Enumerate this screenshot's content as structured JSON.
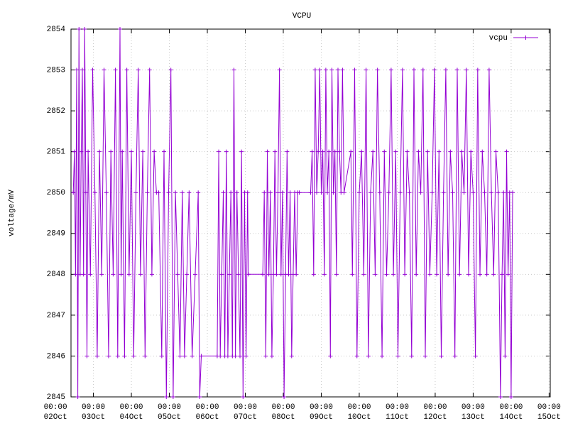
{
  "chart_data": {
    "type": "line",
    "title": "VCPU",
    "ylabel": "voltage/mV",
    "xlim": [
      2.41,
      15.03
    ],
    "ylim": [
      2845,
      2854
    ],
    "xticks": [
      {
        "value": 2,
        "label": "00:00\n02Oct"
      },
      {
        "value": 3,
        "label": "00:00\n03Oct"
      },
      {
        "value": 4,
        "label": "00:00\n04Oct"
      },
      {
        "value": 5,
        "label": "00:00\n05Oct"
      },
      {
        "value": 6,
        "label": "00:00\n06Oct"
      },
      {
        "value": 7,
        "label": "00:00\n07Oct"
      },
      {
        "value": 8,
        "label": "00:00\n08Oct"
      },
      {
        "value": 9,
        "label": "00:00\n09Oct"
      },
      {
        "value": 10,
        "label": "00:00\n10Oct"
      },
      {
        "value": 11,
        "label": "00:00\n11Oct"
      },
      {
        "value": 12,
        "label": "00:00\n12Oct"
      },
      {
        "value": 13,
        "label": "00:00\n13Oct"
      },
      {
        "value": 14,
        "label": "00:00\n14Oct"
      },
      {
        "value": 15,
        "label": "00:00\n15Oct"
      }
    ],
    "yticks": [
      2845,
      2846,
      2847,
      2848,
      2849,
      2850,
      2851,
      2852,
      2853,
      2854
    ],
    "grid": true,
    "legend": "top right",
    "series": [
      {
        "name": "vcpu",
        "color": "#9400d3",
        "x": [
          2.47,
          2.5,
          2.53,
          2.56,
          2.59,
          2.62,
          2.65,
          2.68,
          2.71,
          2.74,
          2.77,
          2.8,
          2.83,
          2.86,
          2.92,
          2.98,
          3.04,
          3.1,
          3.16,
          3.22,
          3.28,
          3.34,
          3.4,
          3.46,
          3.52,
          3.58,
          3.64,
          3.7,
          3.73,
          3.76,
          3.82,
          3.88,
          3.94,
          4.0,
          4.06,
          4.12,
          4.18,
          4.24,
          4.3,
          4.36,
          4.42,
          4.48,
          4.54,
          4.6,
          4.66,
          4.72,
          4.8,
          4.86,
          4.92,
          4.98,
          5.04,
          5.1,
          5.16,
          5.22,
          5.28,
          5.34,
          5.4,
          5.46,
          5.52,
          5.6,
          5.68,
          5.76,
          5.8,
          5.84,
          6.26,
          6.3,
          6.34,
          6.38,
          6.42,
          6.46,
          6.5,
          6.54,
          6.58,
          6.62,
          6.66,
          6.7,
          6.74,
          6.78,
          6.82,
          6.86,
          6.9,
          6.94,
          6.98,
          7.02,
          7.06,
          7.08,
          7.46,
          7.5,
          7.54,
          7.58,
          7.62,
          7.66,
          7.7,
          7.74,
          7.78,
          7.82,
          7.86,
          7.9,
          7.94,
          7.98,
          8.02,
          8.06,
          8.1,
          8.14,
          8.18,
          8.22,
          8.26,
          8.3,
          8.34,
          8.38,
          8.42,
          8.72,
          8.76,
          8.8,
          8.84,
          8.88,
          8.92,
          8.96,
          9.0,
          9.04,
          9.08,
          9.12,
          9.16,
          9.2,
          9.24,
          9.28,
          9.32,
          9.36,
          9.4,
          9.44,
          9.48,
          9.52,
          9.56,
          9.6,
          9.78,
          9.82,
          9.88,
          9.94,
          10.0,
          10.06,
          10.12,
          10.18,
          10.24,
          10.3,
          10.36,
          10.42,
          10.48,
          10.54,
          10.6,
          10.66,
          10.72,
          10.78,
          10.84,
          10.9,
          10.96,
          11.02,
          11.08,
          11.14,
          11.2,
          11.26,
          11.32,
          11.38,
          11.44,
          11.5,
          11.56,
          11.62,
          11.68,
          11.74,
          11.8,
          11.86,
          11.92,
          11.98,
          12.04,
          12.1,
          12.16,
          12.22,
          12.28,
          12.34,
          12.4,
          12.46,
          12.52,
          12.58,
          12.64,
          12.7,
          12.76,
          12.82,
          12.88,
          12.94,
          13.0,
          13.06,
          13.12,
          13.18,
          13.24,
          13.3,
          13.36,
          13.42,
          13.48,
          13.54,
          13.6,
          13.66,
          13.72,
          13.76,
          13.8,
          13.84,
          13.88,
          13.92,
          13.96,
          14.0,
          14.04
        ],
        "values": [
          2850,
          2851,
          2848,
          2853,
          2845,
          2854,
          2848,
          2851,
          2853,
          2848,
          2854,
          2850,
          2846,
          2851,
          2848,
          2853,
          2850,
          2846,
          2851,
          2848,
          2853,
          2850,
          2846,
          2851,
          2848,
          2853,
          2846,
          2854,
          2848,
          2851,
          2846,
          2853,
          2848,
          2851,
          2846,
          2850,
          2853,
          2848,
          2851,
          2846,
          2850,
          2853,
          2848,
          2851,
          2850,
          2850,
          2846,
          2851,
          2845,
          2850,
          2853,
          2845,
          2850,
          2848,
          2846,
          2850,
          2846,
          2848,
          2850,
          2846,
          2848,
          2850,
          2845,
          2846,
          2846,
          2851,
          2846,
          2848,
          2850,
          2846,
          2851,
          2846,
          2848,
          2850,
          2846,
          2853,
          2846,
          2850,
          2848,
          2846,
          2851,
          2845,
          2850,
          2846,
          2850,
          2848,
          2848,
          2850,
          2846,
          2851,
          2848,
          2850,
          2846,
          2848,
          2851,
          2848,
          2850,
          2853,
          2848,
          2850,
          2845,
          2848,
          2851,
          2848,
          2850,
          2846,
          2848,
          2850,
          2848,
          2850,
          2850,
          2850,
          2851,
          2848,
          2853,
          2850,
          2851,
          2853,
          2850,
          2851,
          2848,
          2853,
          2850,
          2851,
          2846,
          2853,
          2850,
          2851,
          2848,
          2853,
          2851,
          2850,
          2853,
          2850,
          2851,
          2848,
          2853,
          2846,
          2850,
          2851,
          2848,
          2853,
          2846,
          2850,
          2851,
          2848,
          2853,
          2850,
          2846,
          2851,
          2848,
          2850,
          2853,
          2848,
          2851,
          2846,
          2850,
          2853,
          2848,
          2851,
          2850,
          2846,
          2853,
          2848,
          2851,
          2850,
          2853,
          2846,
          2851,
          2848,
          2850,
          2853,
          2848,
          2851,
          2846,
          2850,
          2853,
          2848,
          2851,
          2850,
          2846,
          2853,
          2848,
          2851,
          2850,
          2853,
          2848,
          2851,
          2850,
          2846,
          2853,
          2848,
          2851,
          2850,
          2848,
          2853,
          2850,
          2848,
          2851,
          2850,
          2845,
          2848,
          2850,
          2846,
          2851,
          2848,
          2850,
          2845,
          2850
        ]
      }
    ]
  }
}
